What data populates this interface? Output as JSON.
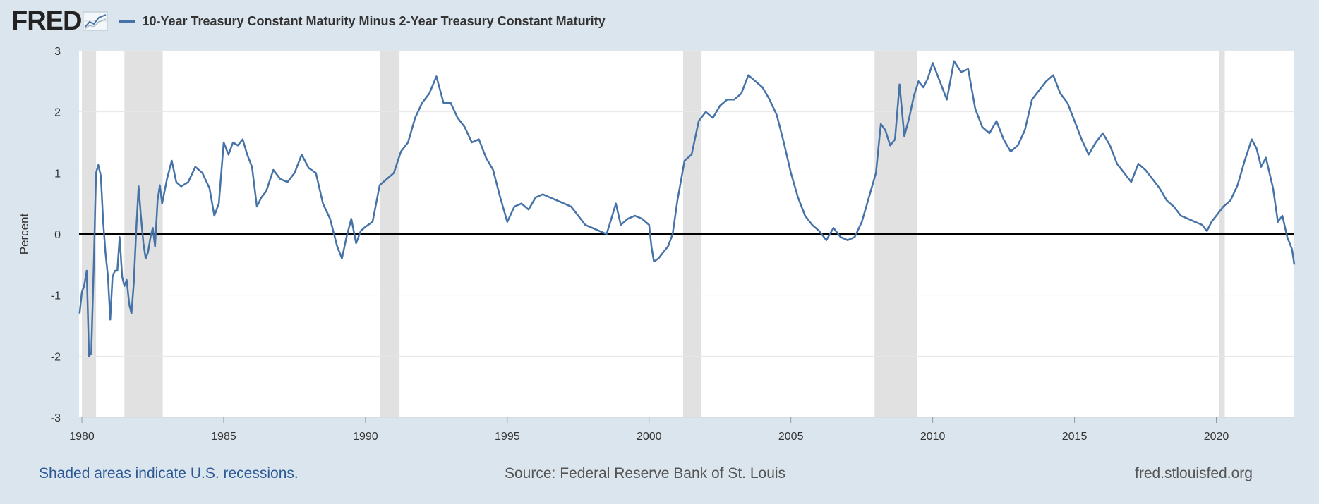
{
  "header": {
    "logo_text": "FRED",
    "legend_label": "10-Year Treasury Constant Maturity Minus 2-Year Treasury Constant Maturity"
  },
  "footer": {
    "recession_note": "Shaded areas indicate U.S. recessions.",
    "source": "Source: Federal Reserve Bank of St. Louis",
    "site": "fred.stlouisfed.org"
  },
  "colors": {
    "background": "#dbe5ed",
    "plot_background": "#ffffff",
    "series": "#4572a7",
    "recession": "#e1e1e1",
    "zero_line": "#000000",
    "grid": "#e6e6e6",
    "note_link": "#2c5a96"
  },
  "chart_data": {
    "type": "line",
    "title": "",
    "xlabel": "",
    "ylabel": "Percent",
    "xlim": [
      1979.9,
      2022.75
    ],
    "ylim": [
      -3,
      3
    ],
    "x_ticks": [
      1980,
      1985,
      1990,
      1995,
      2000,
      2005,
      2010,
      2015,
      2020
    ],
    "x_tick_labels": [
      "1980",
      "1985",
      "1990",
      "1995",
      "2000",
      "2005",
      "2010",
      "2015",
      "2020"
    ],
    "y_ticks": [
      -3,
      -2,
      -1,
      0,
      1,
      2,
      3
    ],
    "y_tick_labels": [
      "-3",
      "-2",
      "-1",
      "0",
      "1",
      "2",
      "3"
    ],
    "grid": true,
    "zero_line": true,
    "recessions": [
      [
        1980.0,
        1980.5
      ],
      [
        1981.5,
        1982.85
      ],
      [
        1990.5,
        1991.2
      ],
      [
        2001.2,
        2001.85
      ],
      [
        2007.95,
        2009.45
      ],
      [
        2020.1,
        2020.3
      ]
    ],
    "series": [
      {
        "name": "10-Year Treasury Constant Maturity Minus 2-Year Treasury Constant Maturity",
        "x": [
          1979.92,
          1980.0,
          1980.08,
          1980.17,
          1980.25,
          1980.33,
          1980.42,
          1980.5,
          1980.58,
          1980.67,
          1980.75,
          1980.83,
          1980.92,
          1981.0,
          1981.08,
          1981.17,
          1981.25,
          1981.33,
          1981.42,
          1981.5,
          1981.58,
          1981.67,
          1981.75,
          1981.83,
          1981.92,
          1982.0,
          1982.08,
          1982.17,
          1982.25,
          1982.33,
          1982.42,
          1982.5,
          1982.58,
          1982.67,
          1982.75,
          1982.83,
          1983.0,
          1983.17,
          1983.33,
          1983.5,
          1983.75,
          1984.0,
          1984.25,
          1984.5,
          1984.67,
          1984.83,
          1985.0,
          1985.17,
          1985.33,
          1985.5,
          1985.67,
          1985.83,
          1986.0,
          1986.17,
          1986.33,
          1986.5,
          1986.75,
          1987.0,
          1987.25,
          1987.5,
          1987.75,
          1988.0,
          1988.25,
          1988.5,
          1988.75,
          1989.0,
          1989.17,
          1989.33,
          1989.5,
          1989.67,
          1989.83,
          1990.0,
          1990.25,
          1990.5,
          1990.75,
          1991.0,
          1991.25,
          1991.5,
          1991.75,
          1992.0,
          1992.25,
          1992.5,
          1992.75,
          1993.0,
          1993.25,
          1993.5,
          1993.75,
          1994.0,
          1994.25,
          1994.5,
          1994.75,
          1995.0,
          1995.25,
          1995.5,
          1995.75,
          1996.0,
          1996.25,
          1996.5,
          1996.75,
          1997.0,
          1997.25,
          1997.5,
          1997.75,
          1998.0,
          1998.25,
          1998.5,
          1998.67,
          1998.83,
          1999.0,
          1999.25,
          1999.5,
          1999.75,
          2000.0,
          2000.08,
          2000.17,
          2000.33,
          2000.5,
          2000.67,
          2000.83,
          2001.0,
          2001.25,
          2001.5,
          2001.75,
          2002.0,
          2002.25,
          2002.5,
          2002.75,
          2003.0,
          2003.25,
          2003.5,
          2003.75,
          2004.0,
          2004.25,
          2004.5,
          2004.75,
          2005.0,
          2005.25,
          2005.5,
          2005.75,
          2006.0,
          2006.25,
          2006.5,
          2006.75,
          2007.0,
          2007.25,
          2007.5,
          2007.75,
          2008.0,
          2008.17,
          2008.33,
          2008.5,
          2008.67,
          2008.83,
          2009.0,
          2009.17,
          2009.33,
          2009.5,
          2009.67,
          2009.83,
          2010.0,
          2010.25,
          2010.5,
          2010.75,
          2011.0,
          2011.25,
          2011.5,
          2011.75,
          2012.0,
          2012.25,
          2012.5,
          2012.75,
          2013.0,
          2013.25,
          2013.5,
          2013.75,
          2014.0,
          2014.25,
          2014.5,
          2014.75,
          2015.0,
          2015.25,
          2015.5,
          2015.75,
          2016.0,
          2016.25,
          2016.5,
          2016.75,
          2017.0,
          2017.25,
          2017.5,
          2017.75,
          2018.0,
          2018.25,
          2018.5,
          2018.75,
          2019.0,
          2019.25,
          2019.5,
          2019.67,
          2019.83,
          2020.0,
          2020.25,
          2020.5,
          2020.75,
          2021.0,
          2021.25,
          2021.42,
          2021.58,
          2021.75,
          2022.0,
          2022.17,
          2022.33,
          2022.5,
          2022.67,
          2022.75
        ],
        "y": [
          -1.3,
          -0.95,
          -0.85,
          -0.6,
          -2.0,
          -1.95,
          -0.5,
          1.0,
          1.13,
          0.95,
          0.2,
          -0.3,
          -0.7,
          -1.4,
          -0.7,
          -0.6,
          -0.6,
          -0.05,
          -0.7,
          -0.85,
          -0.75,
          -1.15,
          -1.3,
          -0.8,
          0.1,
          0.78,
          0.3,
          -0.15,
          -0.4,
          -0.3,
          -0.05,
          0.1,
          -0.2,
          0.55,
          0.8,
          0.5,
          0.9,
          1.2,
          0.85,
          0.78,
          0.85,
          1.1,
          1.0,
          0.75,
          0.3,
          0.5,
          1.5,
          1.3,
          1.5,
          1.45,
          1.55,
          1.3,
          1.1,
          0.45,
          0.6,
          0.7,
          1.05,
          0.9,
          0.85,
          1.0,
          1.3,
          1.08,
          1.0,
          0.5,
          0.25,
          -0.2,
          -0.4,
          -0.05,
          0.25,
          -0.15,
          0.05,
          0.12,
          0.2,
          0.8,
          0.9,
          1.0,
          1.35,
          1.5,
          1.9,
          2.15,
          2.3,
          2.58,
          2.15,
          2.15,
          1.9,
          1.75,
          1.5,
          1.55,
          1.25,
          1.05,
          0.6,
          0.2,
          0.45,
          0.5,
          0.4,
          0.6,
          0.65,
          0.6,
          0.55,
          0.5,
          0.45,
          0.3,
          0.15,
          0.1,
          0.05,
          0.0,
          0.25,
          0.5,
          0.15,
          0.25,
          0.3,
          0.25,
          0.15,
          -0.2,
          -0.45,
          -0.4,
          -0.3,
          -0.2,
          0.0,
          0.55,
          1.2,
          1.3,
          1.85,
          2.0,
          1.9,
          2.1,
          2.2,
          2.2,
          2.3,
          2.6,
          2.5,
          2.4,
          2.2,
          1.95,
          1.5,
          1.0,
          0.6,
          0.3,
          0.15,
          0.05,
          -0.1,
          0.1,
          -0.05,
          -0.1,
          -0.05,
          0.2,
          0.6,
          1.0,
          1.8,
          1.7,
          1.45,
          1.55,
          2.45,
          1.6,
          1.9,
          2.25,
          2.5,
          2.4,
          2.55,
          2.8,
          2.5,
          2.2,
          2.83,
          2.65,
          2.7,
          2.05,
          1.75,
          1.65,
          1.85,
          1.55,
          1.35,
          1.45,
          1.7,
          2.2,
          2.35,
          2.5,
          2.6,
          2.3,
          2.15,
          1.85,
          1.55,
          1.3,
          1.5,
          1.65,
          1.45,
          1.15,
          1.0,
          0.85,
          1.15,
          1.05,
          0.9,
          0.75,
          0.55,
          0.45,
          0.3,
          0.25,
          0.2,
          0.15,
          0.05,
          0.2,
          0.3,
          0.45,
          0.55,
          0.8,
          1.2,
          1.55,
          1.4,
          1.1,
          1.25,
          0.75,
          0.2,
          0.3,
          -0.05,
          -0.25,
          -0.5
        ]
      }
    ]
  }
}
